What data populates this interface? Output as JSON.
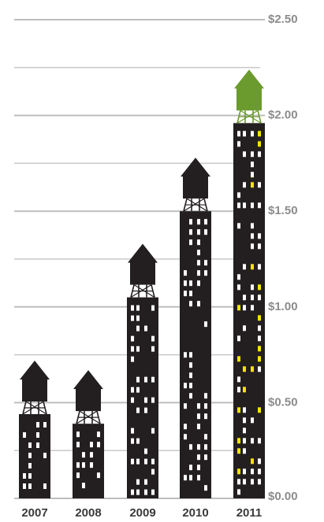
{
  "chart_data": {
    "type": "bar",
    "categories": [
      "2007",
      "2008",
      "2009",
      "2010",
      "2011"
    ],
    "values": [
      0.44,
      0.39,
      1.05,
      1.5,
      1.96
    ],
    "color": "#231f20",
    "tank_colors": [
      "#231f20",
      "#231f20",
      "#231f20",
      "#231f20",
      "#6b9a2f"
    ],
    "ylim": [
      0,
      2.5
    ],
    "yticks": [
      {
        "value": 0,
        "label": "$0.00"
      },
      {
        "value": 0.5,
        "label": "$0.50"
      },
      {
        "value": 1,
        "label": "$1.00"
      },
      {
        "value": 1.5,
        "label": "$1.50"
      },
      {
        "value": 2,
        "label": "$2.00"
      },
      {
        "value": 2.5,
        "label": "$2.50"
      }
    ],
    "minor_grid": [
      0.25,
      0.75,
      1.25,
      1.75,
      2.25
    ],
    "grid": true
  }
}
